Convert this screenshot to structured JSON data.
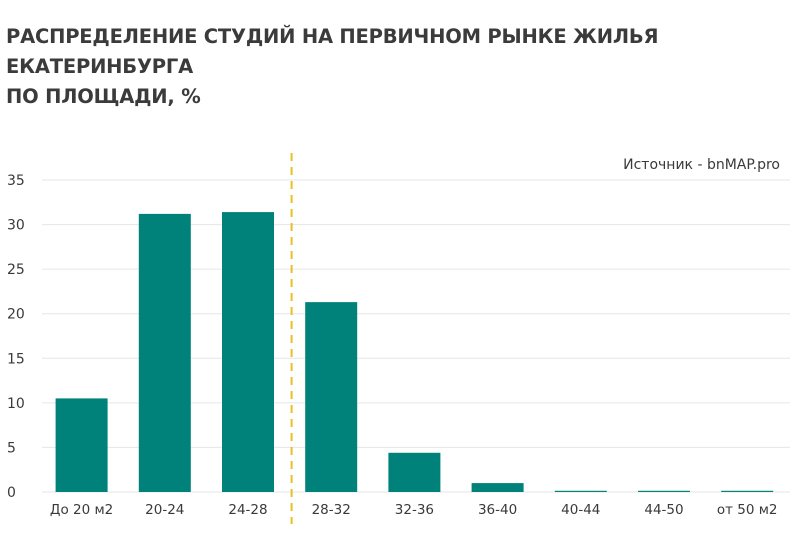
{
  "title_line1": "РАСПРЕДЕЛЕНИЕ СТУДИЙ НА ПЕРВИЧНОМ РЫНКЕ ЖИЛЬЯ ЕКАТЕРИНБУРГА",
  "title_line2": "ПО ПЛОЩАДИ, %",
  "source": "Источник - bnMAP.pro",
  "colors": {
    "bar": "#00827a",
    "grid": "#e6e6e6",
    "divider": "#e8c021",
    "text": "#3a3a3a"
  },
  "chart_data": {
    "type": "bar",
    "title": "РАСПРЕДЕЛЕНИЕ СТУДИЙ НА ПЕРВИЧНОМ РЫНКЕ ЖИЛЬЯ ЕКАТЕРИНБУРГА ПО ПЛОЩАДИ, %",
    "categories": [
      "До 20 м2",
      "20-24",
      "24-28",
      "28-32",
      "32-36",
      "36-40",
      "40-44",
      "44-50",
      "от 50 м2"
    ],
    "values": [
      10.5,
      31.2,
      31.4,
      21.3,
      4.4,
      1.0,
      0.1,
      0.1,
      0.1
    ],
    "ylim": [
      0,
      35
    ],
    "yticks": [
      "0",
      "5",
      "10",
      "15",
      "20",
      "25",
      "30",
      "35"
    ],
    "grid": true,
    "divider_after_category": "24-28",
    "legend": "none"
  }
}
